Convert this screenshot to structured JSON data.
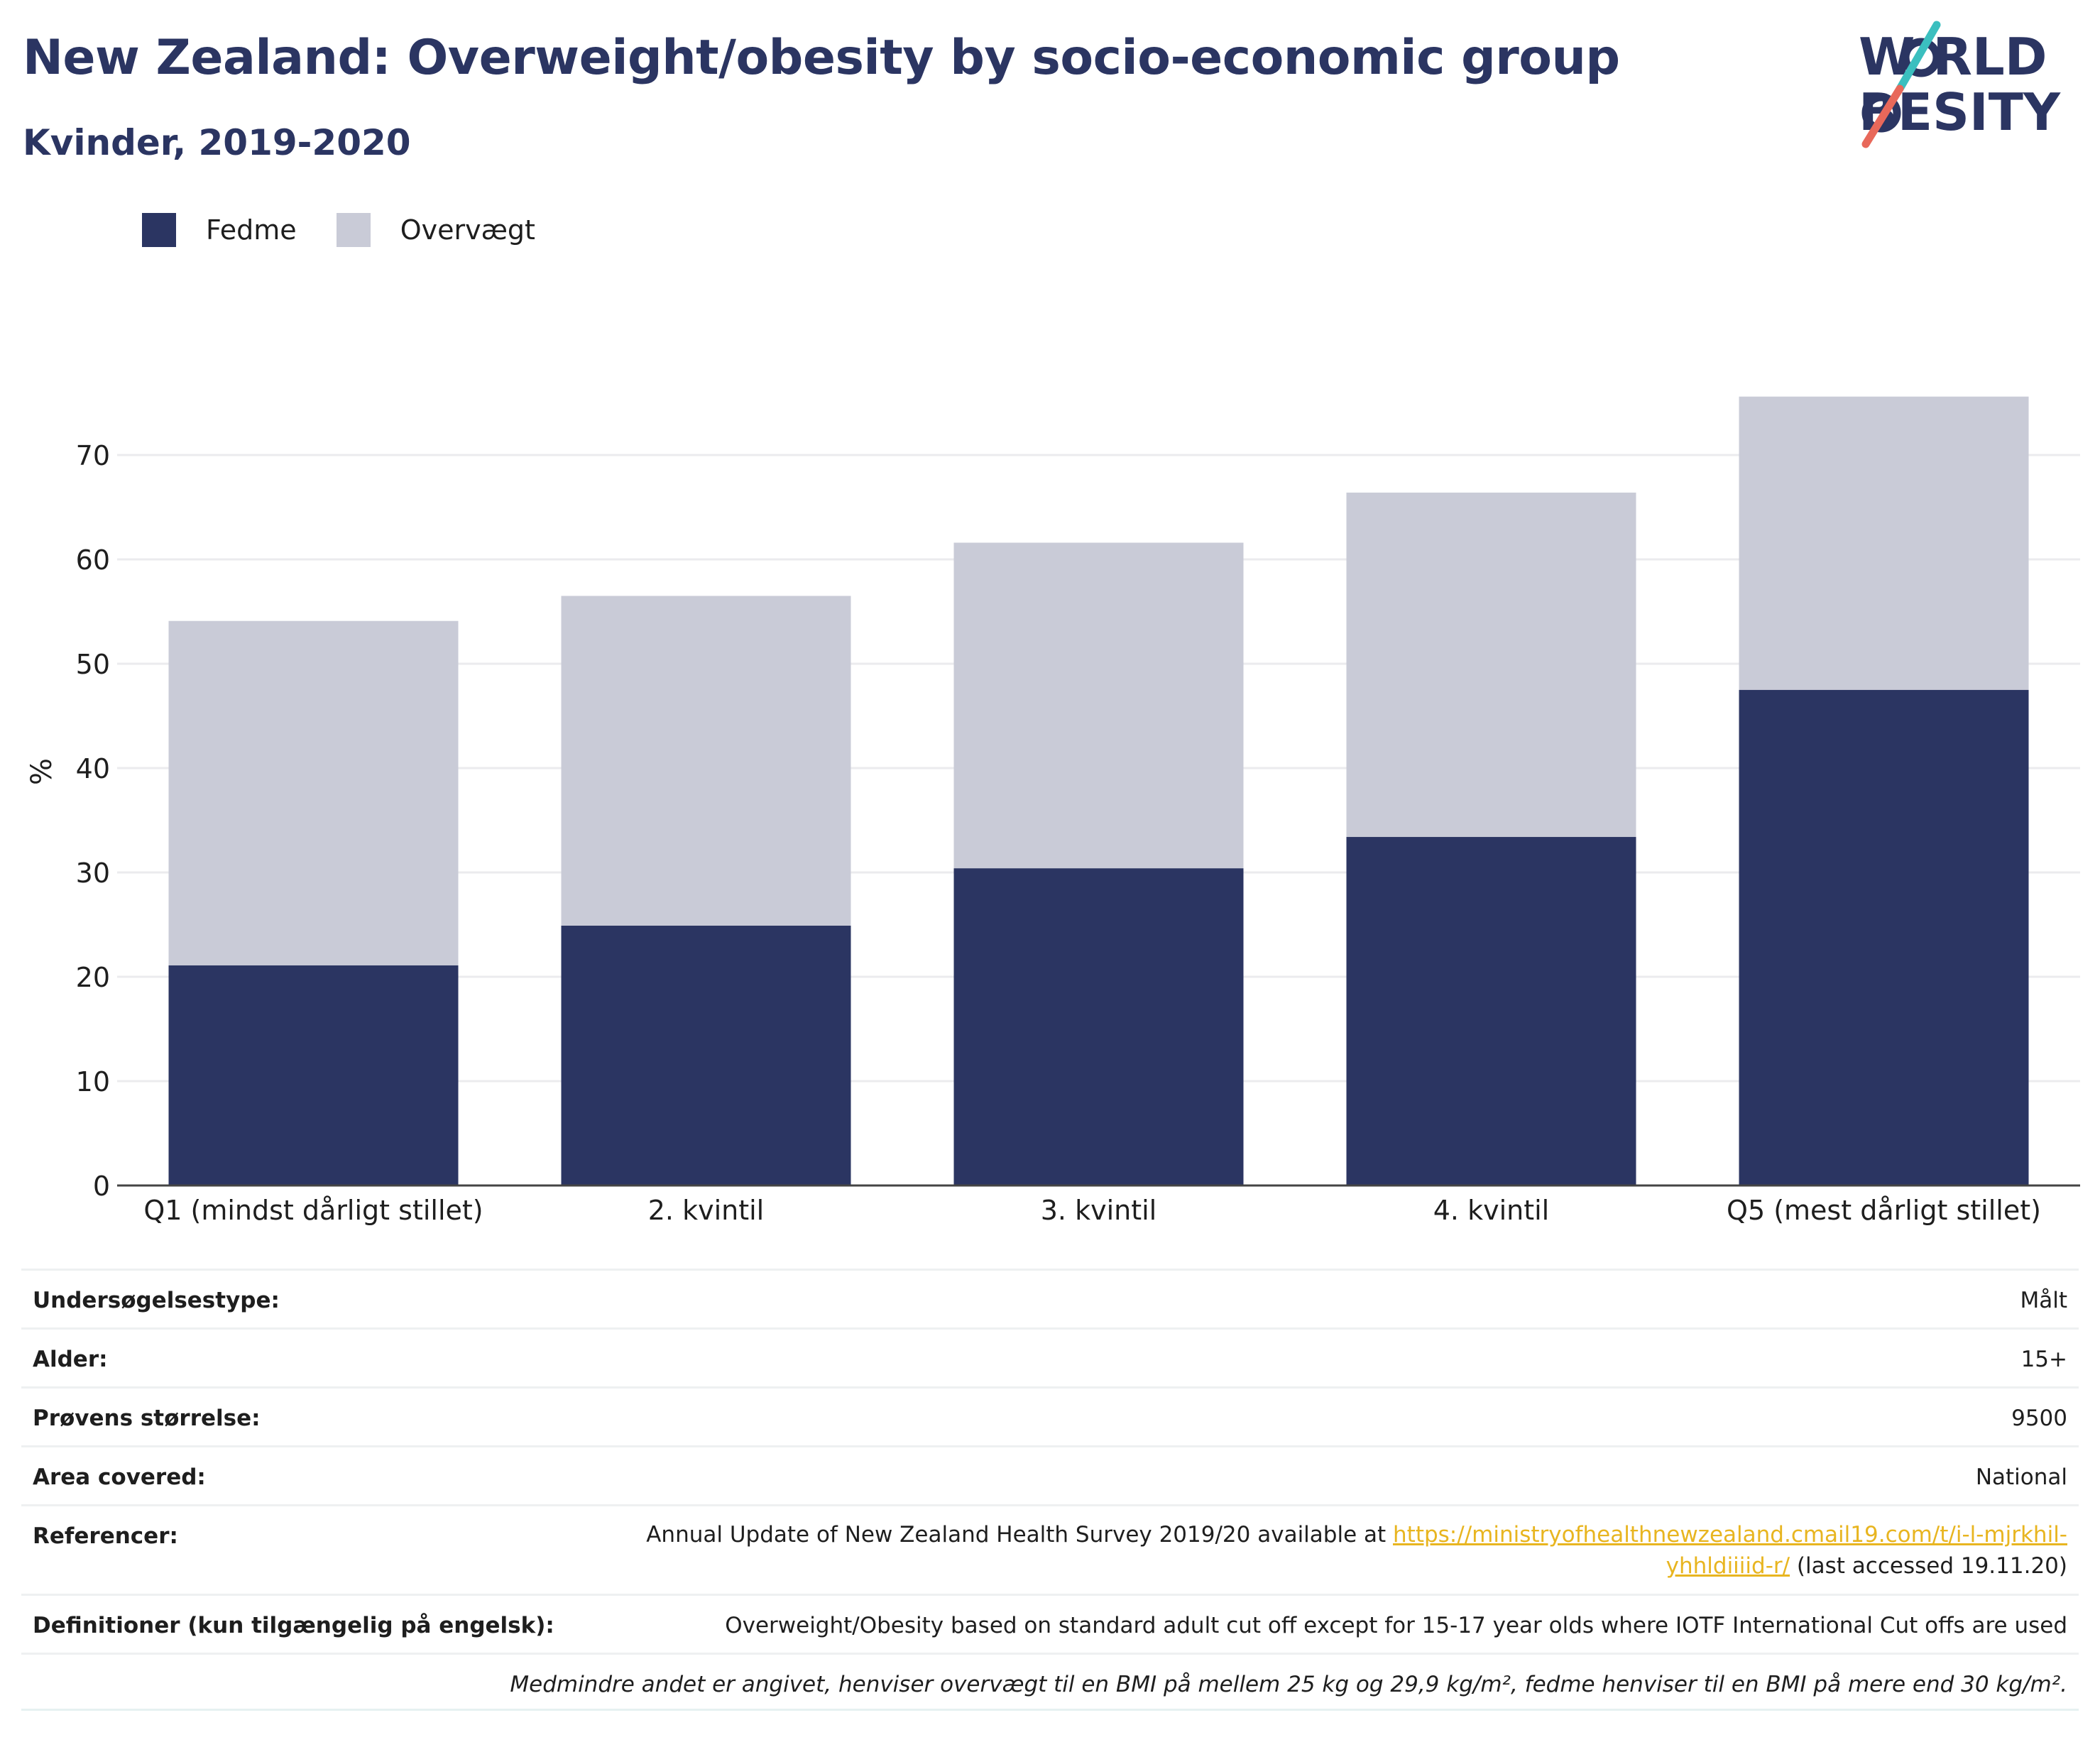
{
  "header": {
    "title": "New Zealand: Overweight/obesity by socio-economic group",
    "subtitle": "Kvinder, 2019-2020"
  },
  "logo": {
    "line1": "W  RLD",
    "line2": "  BESITY",
    "text": "WORLD OBESITY"
  },
  "colors": {
    "fedme": "#2b3562",
    "overvaegt": "#c9cbd7",
    "title": "#2b3562",
    "link": "#e8b520",
    "logo_slash_teal": "#3bbfbf",
    "logo_slash_coral": "#e8685a"
  },
  "legend": {
    "items": [
      {
        "label": "Fedme",
        "color": "#2b3562"
      },
      {
        "label": "Overvægt",
        "color": "#c9cbd7"
      }
    ]
  },
  "chart_data": {
    "type": "bar",
    "stacked": true,
    "categories": [
      "Q1 (mindst dårligt stillet)",
      "2. kvintil",
      "3. kvintil",
      "4. kvintil",
      "Q5 (mest dårligt stillet)"
    ],
    "series": [
      {
        "name": "Fedme",
        "values": [
          21.1,
          24.9,
          30.4,
          33.4,
          47.5
        ]
      },
      {
        "name": "Overvægt",
        "values": [
          33.0,
          31.6,
          31.2,
          33.0,
          28.1
        ]
      }
    ],
    "ylabel": "%",
    "xlabel": "",
    "ylim": [
      0,
      78
    ],
    "yticks": [
      0,
      10,
      20,
      30,
      40,
      50,
      60,
      70
    ],
    "grid": true,
    "legend_position": "top-left"
  },
  "info": {
    "rows": [
      {
        "label": "Undersøgelsestype:",
        "value": "Målt"
      },
      {
        "label": "Alder:",
        "value": "15+"
      },
      {
        "label": "Prøvens størrelse:",
        "value": "9500"
      },
      {
        "label": "Area covered:",
        "value": "National"
      }
    ],
    "reference": {
      "label": "Referencer:",
      "text_before": "Annual Update of New Zealand Health Survey 2019/20 available at ",
      "link_line1": "https://ministryofhealthnewzealand.cmail19.com/t/i-l-mjrkhil-",
      "link_line2": "yhhldiiiid-r/",
      "text_after": " (last accessed 19.11.20)"
    },
    "definition": {
      "label": "Definitioner (kun tilgængelig på engelsk):",
      "value": "Overweight/Obesity based on standard adult cut off except for 15-17 year olds where IOTF International Cut offs are used"
    },
    "footnote": "Medmindre andet er angivet, henviser overvægt til en BMI på mellem 25 kg og 29,9 kg/m², fedme henviser til en BMI på mere end 30 kg/m²."
  }
}
